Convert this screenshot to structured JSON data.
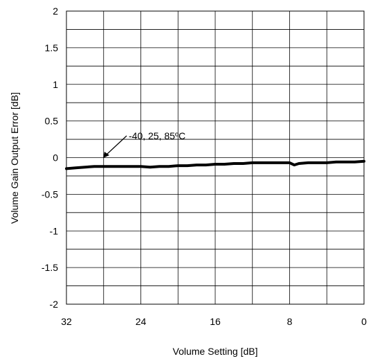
{
  "chart_data": {
    "type": "line",
    "xlabel": "Volume Setting [dB]",
    "ylabel": "Volume Gain Output Error [dB]",
    "xlim": [
      32,
      0
    ],
    "ylim": [
      -2,
      2
    ],
    "x_ticks": [
      "32",
      "24",
      "16",
      "8",
      "0"
    ],
    "y_ticks": [
      "2",
      "1.5",
      "1",
      "0.5",
      "0",
      "-0.5",
      "-1",
      "-1.5",
      "-2"
    ],
    "grid": true,
    "annotation": "-40, 25, 85ºC",
    "series": [
      {
        "x": [
          32,
          31,
          30,
          29,
          28,
          27,
          26,
          25,
          24,
          23,
          22,
          21,
          20,
          19,
          18,
          17,
          16,
          15,
          14,
          13,
          12,
          11,
          10,
          9,
          8,
          7.5,
          7,
          6,
          5,
          4,
          3,
          2,
          1,
          0
        ],
        "values": [
          -0.15,
          -0.14,
          -0.13,
          -0.12,
          -0.12,
          -0.12,
          -0.12,
          -0.12,
          -0.12,
          -0.13,
          -0.12,
          -0.12,
          -0.11,
          -0.11,
          -0.1,
          -0.1,
          -0.09,
          -0.09,
          -0.08,
          -0.08,
          -0.07,
          -0.07,
          -0.07,
          -0.07,
          -0.07,
          -0.1,
          -0.08,
          -0.07,
          -0.07,
          -0.07,
          -0.06,
          -0.06,
          -0.06,
          -0.05
        ]
      }
    ]
  }
}
